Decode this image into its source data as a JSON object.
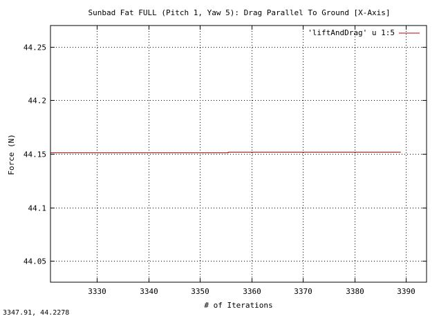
{
  "chart_data": {
    "type": "line",
    "title": "Sunbad Fat FULL (Pitch 1, Yaw 5): Drag Parallel To Ground [X-Axis]",
    "xlabel": "# of Iterations",
    "ylabel": "Force (N)",
    "xlim": [
      3321,
      3394
    ],
    "ylim": [
      44.03,
      44.27
    ],
    "xticks": [
      3330,
      3340,
      3350,
      3360,
      3370,
      3380,
      3390
    ],
    "yticks": [
      44.05,
      44.1,
      44.15,
      44.2,
      44.25
    ],
    "ytick_labels": [
      "44.05",
      "44.1",
      "44.15",
      "44.2",
      "44.25"
    ],
    "grid": true,
    "legend_position": "top-right",
    "series": [
      {
        "name": "'liftAndDrag' u 1:5",
        "color": "#cc0000",
        "x": [
          3321,
          3355.5,
          3355.5,
          3389
        ],
        "y": [
          44.151,
          44.151,
          44.152,
          44.152
        ]
      }
    ]
  },
  "status_readout": "3347.91,  44.2278"
}
